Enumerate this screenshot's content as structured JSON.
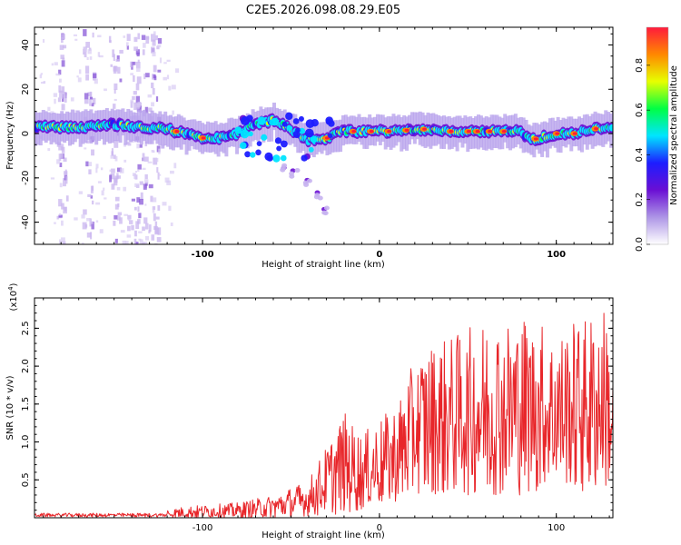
{
  "title": "C2E5.2026.098.08.29.E05",
  "chart_data": [
    {
      "type": "heatmap",
      "name": "spectrogram",
      "xlabel": "Height of straight line (km)",
      "ylabel": "Frequency (Hz)",
      "xlim": [
        -195,
        132
      ],
      "ylim": [
        -50,
        48
      ],
      "xticks": [
        -100,
        0,
        100
      ],
      "xtick_labels": [
        "-100",
        "0",
        "100"
      ],
      "yticks": [
        -40,
        -20,
        0,
        20,
        40
      ],
      "ytick_labels": [
        "-40",
        "-20",
        "0",
        "20",
        "40"
      ],
      "colorbar": {
        "label": "Normalized spectral amplitude",
        "range": [
          0,
          0.97
        ],
        "ticks": [
          0,
          0.2,
          0.4,
          0.6,
          0.8
        ],
        "tick_labels": [
          "0.0",
          "0.2",
          "0.4",
          "0.6",
          "0.8"
        ],
        "colors": [
          "#ffffff",
          "#ad95e6",
          "#6a0fd4",
          "#1d1dff",
          "#00e5ff",
          "#00ff44",
          "#e7ff00",
          "#ff8800",
          "#ff1a3c"
        ]
      },
      "ridge_x": [
        -195,
        -180,
        -165,
        -150,
        -135,
        -120,
        -110,
        -100,
        -90,
        -80,
        -70,
        -60,
        -50,
        -40,
        -30,
        -20,
        -10,
        0,
        10,
        20,
        30,
        40,
        50,
        60,
        70,
        80,
        85,
        90,
        100,
        110,
        120,
        132
      ],
      "ridge_y": [
        3,
        3,
        3,
        4,
        3,
        2,
        0,
        -2,
        -2,
        0,
        4,
        6,
        2,
        -3,
        -2,
        1,
        1,
        1,
        1,
        2,
        2,
        1,
        1,
        1,
        1,
        1,
        -3,
        -2,
        0,
        0,
        2,
        3
      ],
      "hot_spots_x": [
        -115,
        -100,
        -30,
        -15,
        -5,
        5,
        15,
        25,
        40,
        50,
        55,
        62,
        70,
        88,
        100,
        110,
        122
      ],
      "streak_x": [
        -180,
        -165,
        -150,
        -140,
        -135,
        -128
      ],
      "branch_points": [
        [
          -55,
          -15
        ],
        [
          -48,
          -18
        ],
        [
          -40,
          -22
        ],
        [
          -35,
          -28
        ],
        [
          -30,
          -35
        ]
      ]
    },
    {
      "type": "line",
      "name": "snr",
      "xlabel": "Height of straight line (km)",
      "ylabel": "SNR (10 * v/v)",
      "multiplier": "(x10",
      "multiplier_exp": "4",
      "multiplier_close": ")",
      "xlim": [
        -195,
        132
      ],
      "ylim": [
        0,
        2.9
      ],
      "xticks": [
        -100,
        0,
        100
      ],
      "xtick_labels": [
        "-100",
        "0",
        "100"
      ],
      "yticks": [
        0.5,
        1.0,
        1.5,
        2.0,
        2.5
      ],
      "ytick_labels": [
        "0.5",
        "1.0",
        "1.5",
        "2.0",
        "2.5"
      ],
      "color": "#e8262a",
      "envelope_x": [
        -195,
        -160,
        -130,
        -110,
        -80,
        -60,
        -40,
        -20,
        -10,
        10,
        20,
        30,
        60,
        80,
        100,
        120,
        128,
        132
      ],
      "envelope_max": [
        0.03,
        0.06,
        0.08,
        0.15,
        0.2,
        0.3,
        0.5,
        1.4,
        1.1,
        1.5,
        2.1,
        2.3,
        2.6,
        2.7,
        2.5,
        2.7,
        2.8,
        1.9
      ],
      "envelope_min": [
        0.0,
        0.0,
        0.0,
        0.0,
        0.0,
        0.0,
        0.02,
        0.05,
        0.1,
        0.2,
        0.3,
        0.3,
        0.3,
        0.3,
        0.4,
        0.3,
        0.4,
        0.5
      ],
      "points": 900
    }
  ]
}
